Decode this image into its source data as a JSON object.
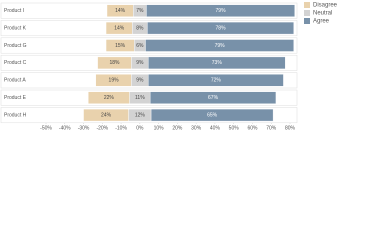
{
  "chart_data": {
    "type": "diverging-bar",
    "categories": [
      "Product I",
      "Product K",
      "Product G",
      "Product C",
      "Product A",
      "Product E",
      "Product H"
    ],
    "series": [
      {
        "name": "Disagree",
        "color": "#e9d2ad",
        "values": [
          14,
          14,
          15,
          18,
          19,
          22,
          24
        ],
        "value_labels": [
          "14%",
          "14%",
          "15%",
          "18%",
          "19%",
          "22%",
          "24%"
        ]
      },
      {
        "name": "Neutral",
        "color": "#d3d3d3",
        "values": [
          7,
          8,
          6,
          9,
          9,
          11,
          12
        ],
        "value_labels": [
          "7%",
          "8%",
          "6%",
          "9%",
          "9%",
          "11%",
          "12%"
        ]
      },
      {
        "name": "Agree",
        "color": "#7891a9",
        "values": [
          79,
          78,
          79,
          73,
          72,
          67,
          65
        ],
        "value_labels": [
          "79%",
          "78%",
          "79%",
          "73%",
          "72%",
          "67%",
          "65%"
        ]
      }
    ],
    "xlim": [
      -50,
      80
    ],
    "xticks": [
      {
        "value": -50,
        "label": "-50%"
      },
      {
        "value": -40,
        "label": "-40%"
      },
      {
        "value": -30,
        "label": "-30%"
      },
      {
        "value": -20,
        "label": "-20%"
      },
      {
        "value": -10,
        "label": "-10%"
      },
      {
        "value": 0,
        "label": "0%"
      },
      {
        "value": 10,
        "label": "10%"
      },
      {
        "value": 20,
        "label": "20%"
      },
      {
        "value": 30,
        "label": "30%"
      },
      {
        "value": 40,
        "label": "40%"
      },
      {
        "value": 50,
        "label": "50%"
      },
      {
        "value": 60,
        "label": "60%"
      },
      {
        "value": 70,
        "label": "70%"
      },
      {
        "value": 80,
        "label": "80%"
      }
    ],
    "legend": "top-right"
  }
}
